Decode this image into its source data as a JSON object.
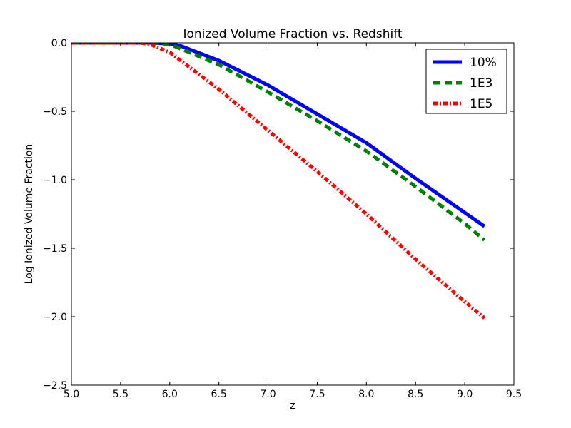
{
  "chart_data": {
    "type": "line",
    "title": "Ionized Volume Fraction vs. Redshift",
    "xlabel": "z",
    "ylabel": "Log Ionized Volume Fraction",
    "xlim": [
      5.0,
      9.5
    ],
    "ylim": [
      -2.5,
      0.0
    ],
    "xticks": [
      5.0,
      5.5,
      6.0,
      6.5,
      7.0,
      7.5,
      8.0,
      8.5,
      9.0,
      9.5
    ],
    "yticks": [
      0.0,
      -0.5,
      -1.0,
      -1.5,
      -2.0,
      -2.5
    ],
    "xtick_labels": [
      "5.0",
      "5.5",
      "6.0",
      "6.5",
      "7.0",
      "7.5",
      "8.0",
      "8.5",
      "9.0",
      "9.5"
    ],
    "ytick_labels": [
      "0.0",
      "−0.5",
      "−1.0",
      "−1.5",
      "−2.0",
      "−2.5"
    ],
    "grid": false,
    "legend_position": "top-right",
    "series": [
      {
        "name": "10%",
        "color": "#0000ff",
        "style": "solid",
        "x": [
          5.0,
          5.8,
          6.0,
          6.1,
          6.5,
          7.0,
          7.5,
          8.0,
          8.5,
          9.0,
          9.2
        ],
        "y": [
          0.0,
          0.0,
          -0.005,
          -0.02,
          -0.13,
          -0.31,
          -0.52,
          -0.73,
          -0.99,
          -1.24,
          -1.34
        ]
      },
      {
        "name": "1E3",
        "color": "#008000",
        "style": "dashed",
        "x": [
          5.0,
          5.8,
          6.0,
          6.1,
          6.5,
          7.0,
          7.5,
          8.0,
          8.5,
          9.0,
          9.2
        ],
        "y": [
          0.0,
          0.0,
          -0.01,
          -0.04,
          -0.16,
          -0.36,
          -0.57,
          -0.79,
          -1.05,
          -1.32,
          -1.44
        ]
      },
      {
        "name": "1E5",
        "color": "#ff0000",
        "style": "dash-dot",
        "x": [
          5.0,
          5.7,
          5.8,
          6.0,
          6.5,
          7.0,
          7.5,
          8.0,
          8.5,
          9.0,
          9.2
        ],
        "y": [
          0.0,
          0.0,
          -0.01,
          -0.07,
          -0.34,
          -0.64,
          -0.94,
          -1.25,
          -1.58,
          -1.89,
          -2.01
        ]
      }
    ]
  }
}
